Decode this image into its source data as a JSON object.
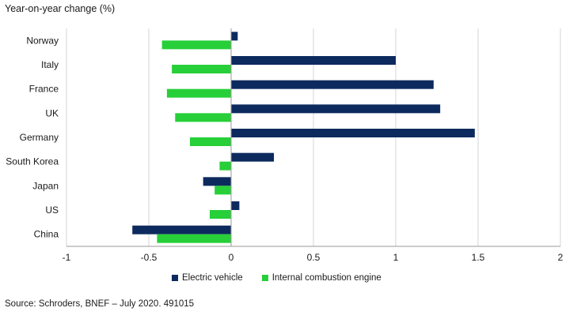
{
  "colors": {
    "ev": "#0d2a5e",
    "ice": "#27cf38",
    "grid": "#d4d4d4",
    "axis": "#999999"
  },
  "chart_data": {
    "type": "bar",
    "orientation": "horizontal",
    "title": "Year-on-year change (%)",
    "categories": [
      "Norway",
      "Italy",
      "France",
      "UK",
      "Germany",
      "South Korea",
      "Japan",
      "US",
      "China"
    ],
    "series": [
      {
        "name": "Electric vehicle",
        "values": [
          0.04,
          1.0,
          1.23,
          1.27,
          1.48,
          0.26,
          -0.17,
          0.05,
          -0.6
        ]
      },
      {
        "name": "Internal combustion engine",
        "values": [
          -0.42,
          -0.36,
          -0.39,
          -0.34,
          -0.25,
          -0.07,
          -0.1,
          -0.13,
          -0.45
        ]
      }
    ],
    "xlim": [
      -1,
      2
    ],
    "xticks": [
      "-1",
      "-0.5",
      "0",
      "0.5",
      "1",
      "1.5",
      "2"
    ],
    "grid": true,
    "legend": "bottom"
  },
  "source": "Source: Schroders, BNEF – July 2020. 491015"
}
